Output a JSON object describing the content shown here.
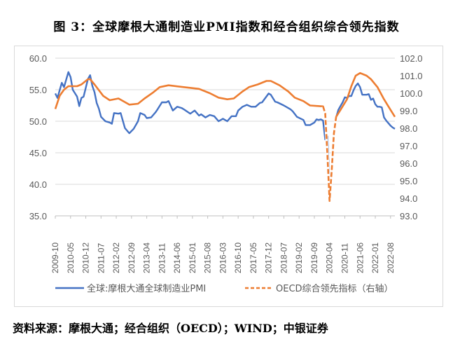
{
  "title": "图 3：全球摩根大通制造业PMI指数和经合组织综合领先指数",
  "source": "资料来源：摩根大通；经合组织（OECD）；WIND；中银证券",
  "chart_data": {
    "type": "line",
    "title": "",
    "grid": true,
    "legend_position": "bottom",
    "x_start": "2009-10",
    "x_end": "2022-10",
    "x_tick_labels": [
      "2009-10",
      "2010-05",
      "2010-12",
      "2011-07",
      "2012-02",
      "2012-09",
      "2013-04",
      "2013-11",
      "2014-06",
      "2015-01",
      "2015-08",
      "2016-03",
      "2016-10",
      "2017-05",
      "2017-12",
      "2018-07",
      "2019-02",
      "2019-09",
      "2020-04",
      "2020-11",
      "2021-06",
      "2022-01",
      "2022-08"
    ],
    "y_left": {
      "range": [
        35,
        60
      ],
      "ticks": [
        "35.0",
        "40.0",
        "45.0",
        "50.0",
        "55.0",
        "60.0"
      ]
    },
    "y_right": {
      "range": [
        93,
        102
      ],
      "ticks": [
        "93.0",
        "94.0",
        "95.0",
        "96.0",
        "97.0",
        "98.0",
        "99.0",
        "100.0",
        "101.0",
        "102.0"
      ]
    },
    "series": [
      {
        "name": "全球:摩根大通全球制造业PMI",
        "axis": "left",
        "color": "#4472c4",
        "style": "solid",
        "points": [
          [
            "2009-10",
            54.4
          ],
          [
            "2009-11",
            53.7
          ],
          [
            "2010-01",
            56.1
          ],
          [
            "2010-02",
            55.4
          ],
          [
            "2010-04",
            57.8
          ],
          [
            "2010-05",
            57.0
          ],
          [
            "2010-06",
            55.0
          ],
          [
            "2010-08",
            53.9
          ],
          [
            "2010-09",
            52.4
          ],
          [
            "2010-10",
            53.7
          ],
          [
            "2010-11",
            53.9
          ],
          [
            "2011-01",
            56.7
          ],
          [
            "2011-02",
            57.3
          ],
          [
            "2011-03",
            55.6
          ],
          [
            "2011-04",
            54.6
          ],
          [
            "2011-05",
            52.9
          ],
          [
            "2011-06",
            52.0
          ],
          [
            "2011-07",
            50.7
          ],
          [
            "2011-09",
            50.0
          ],
          [
            "2011-11",
            49.8
          ],
          [
            "2011-12",
            49.6
          ],
          [
            "2012-01",
            51.3
          ],
          [
            "2012-03",
            51.2
          ],
          [
            "2012-04",
            51.3
          ],
          [
            "2012-06",
            48.9
          ],
          [
            "2012-08",
            48.1
          ],
          [
            "2012-10",
            48.8
          ],
          [
            "2012-12",
            50.0
          ],
          [
            "2013-01",
            51.3
          ],
          [
            "2013-03",
            51.0
          ],
          [
            "2013-04",
            50.5
          ],
          [
            "2013-06",
            50.6
          ],
          [
            "2013-08",
            51.4
          ],
          [
            "2013-09",
            51.9
          ],
          [
            "2013-11",
            53.0
          ],
          [
            "2014-01",
            53.0
          ],
          [
            "2014-02",
            53.2
          ],
          [
            "2014-04",
            51.7
          ],
          [
            "2014-06",
            52.3
          ],
          [
            "2014-08",
            52.1
          ],
          [
            "2014-09",
            51.9
          ],
          [
            "2014-12",
            51.2
          ],
          [
            "2015-02",
            51.7
          ],
          [
            "2015-04",
            50.9
          ],
          [
            "2015-05",
            51.1
          ],
          [
            "2015-07",
            50.6
          ],
          [
            "2015-09",
            51.0
          ],
          [
            "2015-11",
            50.8
          ],
          [
            "2016-01",
            50.0
          ],
          [
            "2016-03",
            50.4
          ],
          [
            "2016-05",
            50.0
          ],
          [
            "2016-07",
            50.8
          ],
          [
            "2016-09",
            50.8
          ],
          [
            "2016-10",
            51.7
          ],
          [
            "2016-12",
            52.3
          ],
          [
            "2017-02",
            52.6
          ],
          [
            "2017-04",
            52.3
          ],
          [
            "2017-06",
            52.3
          ],
          [
            "2017-08",
            52.9
          ],
          [
            "2017-09",
            53.0
          ],
          [
            "2017-12",
            54.4
          ],
          [
            "2018-01",
            54.2
          ],
          [
            "2018-03",
            53.1
          ],
          [
            "2018-04",
            53.0
          ],
          [
            "2018-07",
            52.5
          ],
          [
            "2018-10",
            51.9
          ],
          [
            "2018-11",
            51.6
          ],
          [
            "2019-01",
            50.7
          ],
          [
            "2019-04",
            50.2
          ],
          [
            "2019-05",
            49.4
          ],
          [
            "2019-07",
            49.4
          ],
          [
            "2019-09",
            49.8
          ],
          [
            "2019-10",
            50.3
          ],
          [
            "2019-11",
            50.2
          ],
          [
            "2019-12",
            50.3
          ],
          [
            "2020-01",
            50.1
          ],
          [
            "2020-02",
            47.1
          ],
          [
            "2020-03",
            47.6
          ],
          [
            "2020-04",
            39.6
          ],
          [
            "2020-05",
            42.4
          ],
          [
            "2020-06",
            47.9
          ],
          [
            "2020-07",
            50.6
          ],
          [
            "2020-08",
            51.8
          ],
          [
            "2020-09",
            52.4
          ],
          [
            "2020-10",
            53.0
          ],
          [
            "2020-11",
            53.8
          ],
          [
            "2020-12",
            53.7
          ],
          [
            "2021-01",
            54.0
          ],
          [
            "2021-02",
            54.0
          ],
          [
            "2021-03",
            54.9
          ],
          [
            "2021-04",
            55.6
          ],
          [
            "2021-05",
            56.0
          ],
          [
            "2021-06",
            55.4
          ],
          [
            "2021-07",
            54.2
          ],
          [
            "2021-08",
            54.2
          ],
          [
            "2021-09",
            54.2
          ],
          [
            "2021-10",
            54.3
          ],
          [
            "2021-11",
            53.4
          ],
          [
            "2021-12",
            53.6
          ],
          [
            "2022-01",
            52.7
          ],
          [
            "2022-02",
            52.3
          ],
          [
            "2022-03",
            52.3
          ],
          [
            "2022-04",
            52.2
          ],
          [
            "2022-05",
            50.6
          ],
          [
            "2022-06",
            50.1
          ],
          [
            "2022-07",
            49.7
          ],
          [
            "2022-08",
            49.3
          ],
          [
            "2022-09",
            49.0
          ],
          [
            "2022-10",
            48.8
          ]
        ]
      },
      {
        "name": "OECD综合领先指标（右轴）",
        "axis": "right",
        "color": "#ed7d31",
        "style": "dashed",
        "points": [
          [
            "2009-10",
            99.1
          ],
          [
            "2009-12",
            99.85
          ],
          [
            "2010-02",
            100.2
          ],
          [
            "2010-04",
            100.4
          ],
          [
            "2010-08",
            100.4
          ],
          [
            "2010-10",
            100.5
          ],
          [
            "2011-01",
            100.8
          ],
          [
            "2011-02",
            100.8
          ],
          [
            "2011-04",
            100.5
          ],
          [
            "2011-08",
            99.85
          ],
          [
            "2011-11",
            99.6
          ],
          [
            "2012-03",
            99.7
          ],
          [
            "2012-08",
            99.35
          ],
          [
            "2012-12",
            99.4
          ],
          [
            "2013-03",
            99.7
          ],
          [
            "2013-07",
            100.05
          ],
          [
            "2013-10",
            100.35
          ],
          [
            "2014-02",
            100.45
          ],
          [
            "2014-09",
            100.35
          ],
          [
            "2015-04",
            100.25
          ],
          [
            "2015-09",
            100.0
          ],
          [
            "2016-01",
            99.75
          ],
          [
            "2016-05",
            99.65
          ],
          [
            "2016-08",
            99.7
          ],
          [
            "2016-12",
            100.1
          ],
          [
            "2017-03",
            100.35
          ],
          [
            "2017-07",
            100.5
          ],
          [
            "2017-11",
            100.7
          ],
          [
            "2018-01",
            100.7
          ],
          [
            "2018-05",
            100.45
          ],
          [
            "2018-09",
            100.1
          ],
          [
            "2018-12",
            99.75
          ],
          [
            "2019-04",
            99.55
          ],
          [
            "2019-07",
            99.3
          ],
          [
            "2020-01",
            99.25
          ],
          [
            "2020-02",
            98.85
          ],
          [
            "2020-03",
            96.5
          ],
          [
            "2020-04",
            93.85
          ],
          [
            "2020-05",
            95.6
          ],
          [
            "2020-06",
            97.7
          ],
          [
            "2020-07",
            98.65
          ],
          [
            "2020-09",
            99.05
          ],
          [
            "2020-12",
            99.65
          ],
          [
            "2021-02",
            100.4
          ],
          [
            "2021-04",
            101.0
          ],
          [
            "2021-06",
            101.15
          ],
          [
            "2021-09",
            101.0
          ],
          [
            "2021-11",
            100.8
          ],
          [
            "2022-02",
            100.35
          ],
          [
            "2022-05",
            99.65
          ],
          [
            "2022-08",
            99.05
          ],
          [
            "2022-10",
            98.65
          ]
        ]
      }
    ]
  }
}
